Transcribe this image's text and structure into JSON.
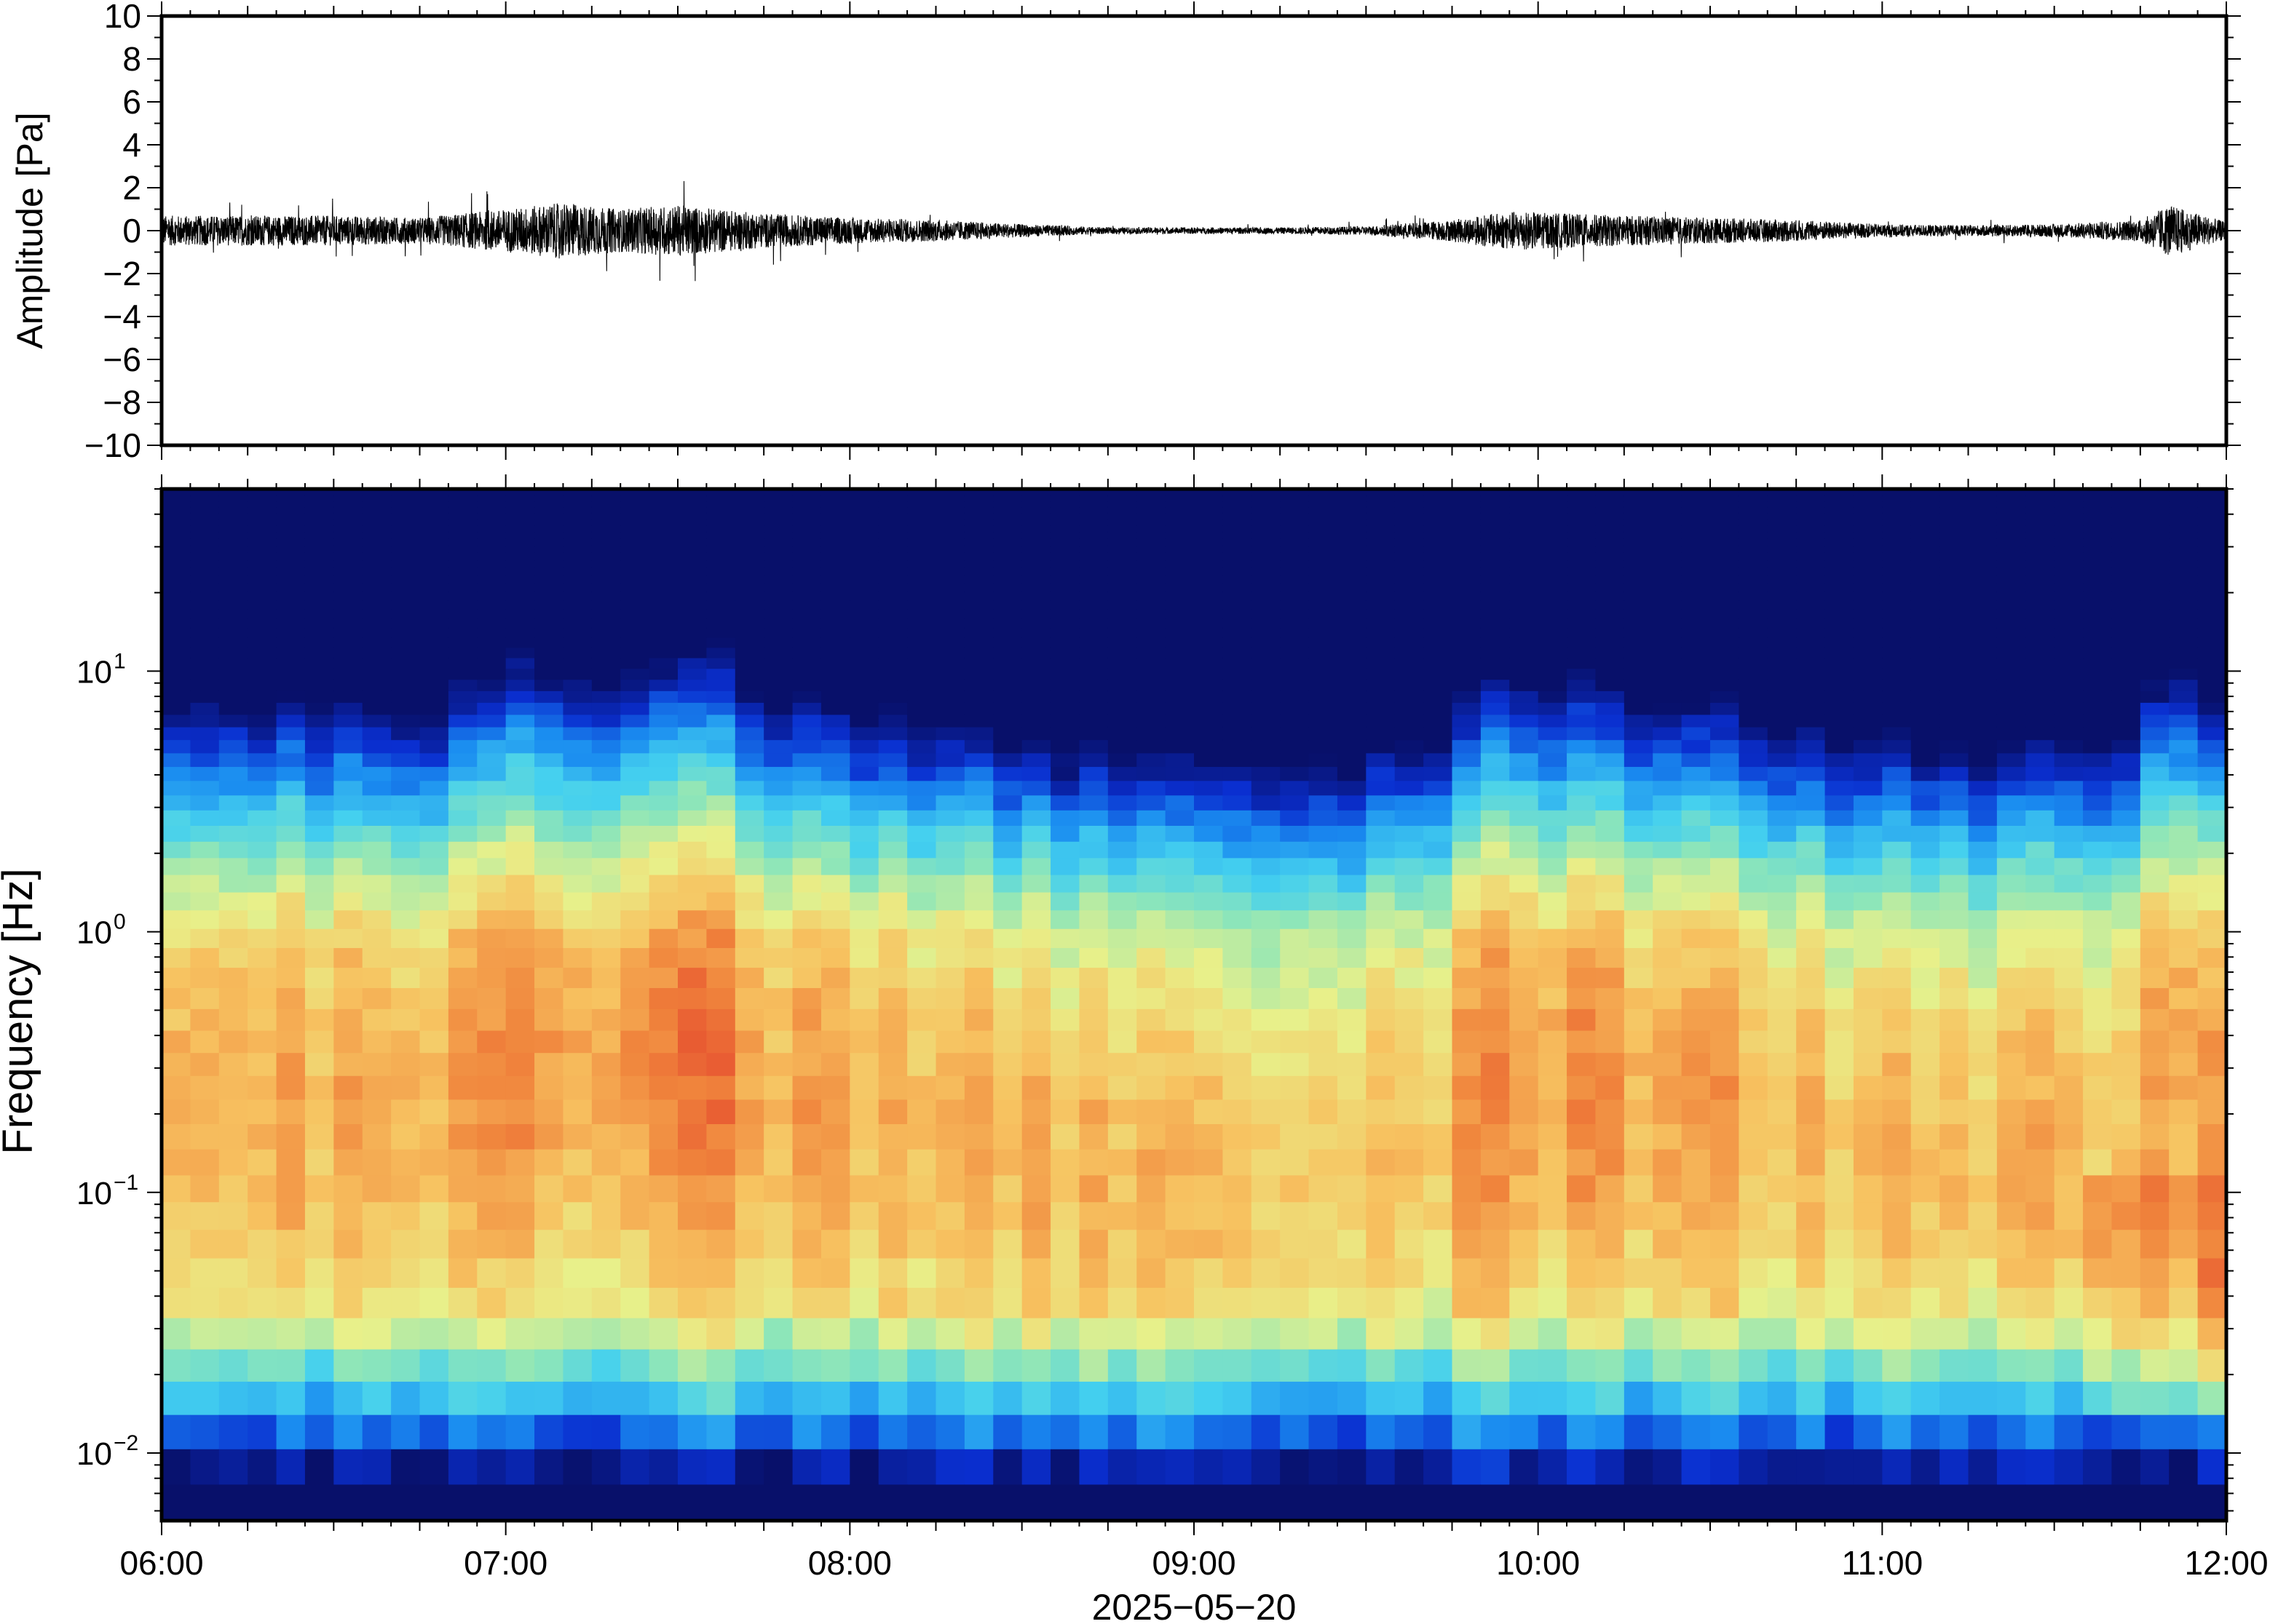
{
  "chart_data": [
    {
      "type": "line",
      "ylabel": "Amplitude [Pa]",
      "ylim": [
        -10,
        10
      ],
      "yticks": [
        {
          "value": 10,
          "label": "10"
        },
        {
          "value": 8,
          "label": "8"
        },
        {
          "value": 6,
          "label": "6"
        },
        {
          "value": 4,
          "label": "4"
        },
        {
          "value": 2,
          "label": "2"
        },
        {
          "value": 0,
          "label": "0"
        },
        {
          "value": -2,
          "label": "−2"
        },
        {
          "value": -4,
          "label": "−4"
        },
        {
          "value": -6,
          "label": "−6"
        },
        {
          "value": -8,
          "label": "−8"
        },
        {
          "value": -10,
          "label": "−10"
        }
      ],
      "xlim": [
        "06:00",
        "12:00"
      ],
      "envelope": {
        "time": [
          "06:00",
          "06:15",
          "06:30",
          "06:45",
          "07:00",
          "07:10",
          "07:20",
          "07:30",
          "07:45",
          "08:00",
          "08:15",
          "08:30",
          "08:45",
          "09:00",
          "09:15",
          "09:30",
          "09:45",
          "09:55",
          "10:05",
          "10:15",
          "10:30",
          "10:45",
          "11:00",
          "11:15",
          "11:30",
          "11:45",
          "11:50",
          "12:00"
        ],
        "amplitude": [
          0.7,
          0.7,
          0.7,
          0.6,
          1.0,
          1.3,
          1.0,
          1.2,
          0.8,
          0.6,
          0.5,
          0.3,
          0.15,
          0.15,
          0.15,
          0.2,
          0.5,
          0.9,
          0.8,
          0.7,
          0.6,
          0.5,
          0.3,
          0.25,
          0.3,
          0.5,
          1.2,
          0.4
        ]
      },
      "grid": false
    },
    {
      "type": "heatmap",
      "ylabel": "Frequency [Hz]",
      "xlabel": "2025−05−20",
      "yscale": "log",
      "ylim": [
        0.0055,
        50
      ],
      "yticks": [
        {
          "value": 10,
          "base": "10",
          "exp": "1"
        },
        {
          "value": 1,
          "base": "10",
          "exp": "0"
        },
        {
          "value": 0.1,
          "base": "10",
          "exp": "−1"
        },
        {
          "value": 0.01,
          "base": "10",
          "exp": "−2"
        }
      ],
      "xticks": [
        "06:00",
        "07:00",
        "08:00",
        "09:00",
        "10:00",
        "11:00",
        "12:00"
      ],
      "colormap": "jet-like (blue low, red high)",
      "colors": [
        "#08106a",
        "#0a2fd0",
        "#1a8cf0",
        "#44d0ef",
        "#8fe6b8",
        "#e8f08a",
        "#f7c260",
        "#f0843c",
        "#e23a2a"
      ],
      "grid": false
    }
  ]
}
